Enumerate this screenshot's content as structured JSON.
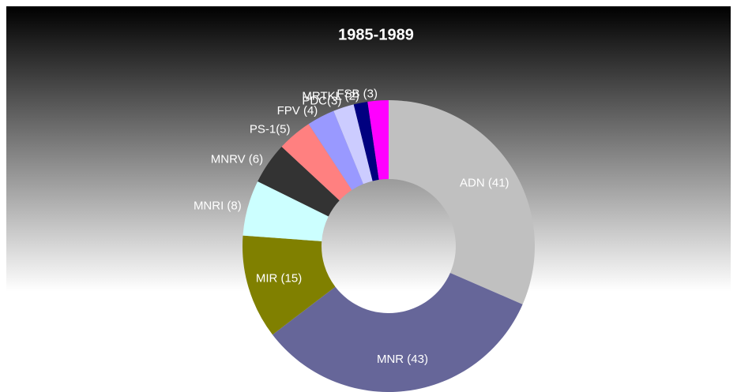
{
  "chart_data": {
    "type": "donut",
    "title": "1985-1989",
    "categories": [
      "ADN (41)",
      "MNR (43)",
      "MIR (15)",
      "MNRI (8)",
      "MNRV (6)",
      "PS-1(5)",
      "FPV (4)",
      "PDC(3)",
      "MRTKL (2)",
      "FSB (3)"
    ],
    "values": [
      41,
      43,
      15,
      8,
      6,
      5,
      4,
      3,
      2,
      3
    ],
    "colors": [
      "#c0c0c0",
      "#666699",
      "#808000",
      "#ccffff",
      "#333333",
      "#ff8080",
      "#9999ff",
      "#ccccff",
      "#000080",
      "#ff00ff"
    ]
  }
}
